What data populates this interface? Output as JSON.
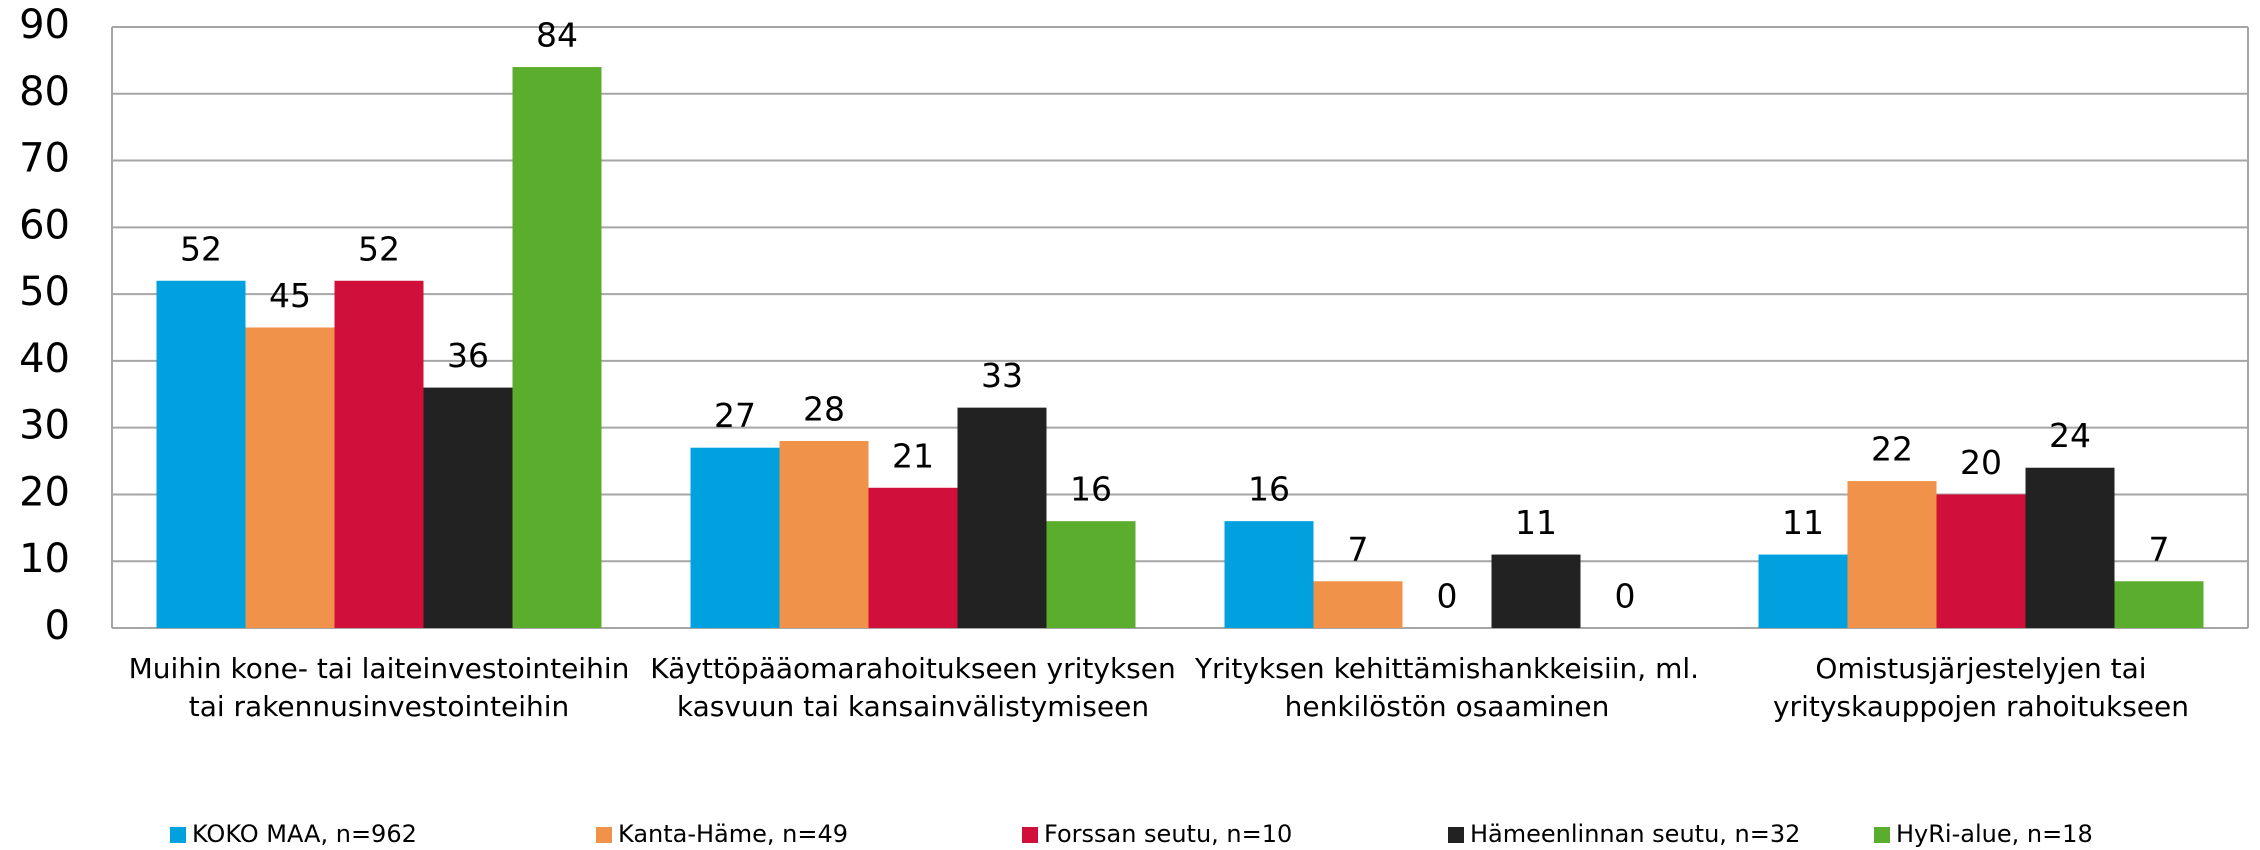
{
  "chart_data": {
    "type": "bar",
    "categories": [
      [
        "Muihin kone- tai laiteinvestointeihin",
        "tai rakennusinvestointeihin"
      ],
      [
        "Käyttöpääomarahoitukseen yrityksen",
        "kasvuun tai kansainvälistymiseen"
      ],
      [
        "Yrityksen kehittämishankkeisiin, ml.",
        "henkilöstön osaaminen"
      ],
      [
        "Omistusjärjestelyjen tai",
        "yrityskauppojen rahoitukseen"
      ]
    ],
    "series": [
      {
        "name": "KOKO MAA, n=962",
        "color": "#00a1de",
        "values": [
          52,
          27,
          16,
          11
        ]
      },
      {
        "name": "Kanta-Häme, n=49",
        "color": "#f0924a",
        "values": [
          45,
          28,
          7,
          22
        ]
      },
      {
        "name": "Forssan seutu, n=10",
        "color": "#d0103a",
        "values": [
          52,
          21,
          0,
          20
        ]
      },
      {
        "name": "Hämeenlinnan seutu, n=32",
        "color": "#222222",
        "values": [
          36,
          33,
          11,
          24
        ]
      },
      {
        "name": "HyRi-alue, n=18",
        "color": "#5aad2d",
        "values": [
          84,
          16,
          0,
          7
        ]
      }
    ],
    "ylim": [
      0,
      90
    ],
    "yticks": [
      0,
      10,
      20,
      30,
      40,
      50,
      60,
      70,
      80,
      90
    ],
    "grid": true,
    "legend": "bottom"
  }
}
